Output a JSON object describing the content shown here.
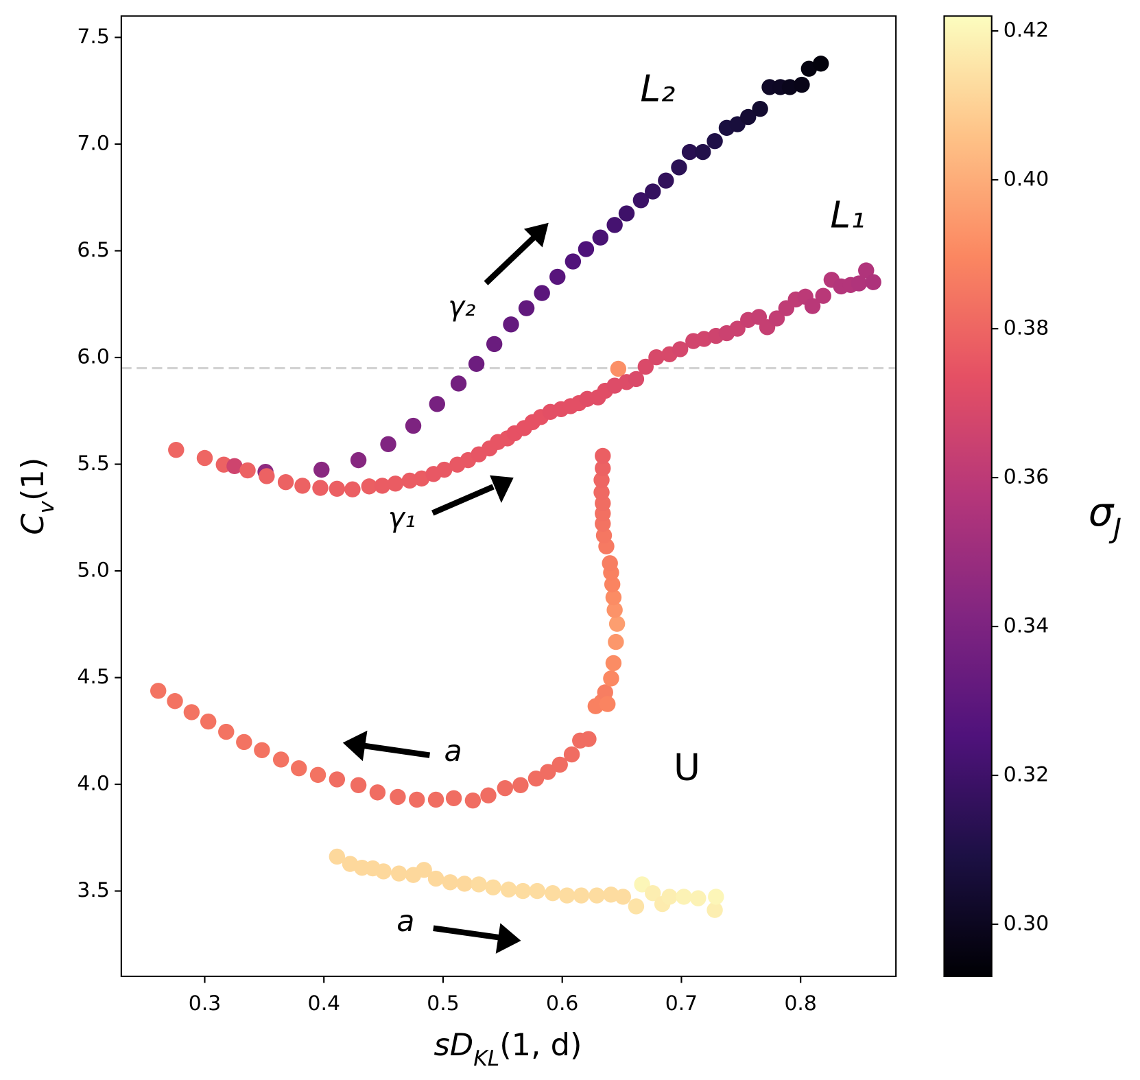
{
  "chart_data": {
    "type": "scatter",
    "xlabel": [
      {
        "text": "sD"
      },
      {
        "text": "KL",
        "sub": true
      },
      {
        "text": "(1, d)"
      }
    ],
    "ylabel": [
      {
        "text": "C"
      },
      {
        "text": "v",
        "sub": true
      },
      {
        "text": "(1)"
      }
    ],
    "xlim": [
      0.23,
      0.88
    ],
    "ylim": [
      3.1,
      7.6
    ],
    "xticks": [
      0.3,
      0.4,
      0.5,
      0.6,
      0.7,
      0.8
    ],
    "yticks": [
      {
        "value": 3.5,
        "label": "3.5"
      },
      {
        "value": 4.0,
        "label": "4.0"
      },
      {
        "value": 4.5,
        "label": "4.5"
      },
      {
        "value": 5.0,
        "label": "5.0"
      },
      {
        "value": 5.5,
        "label": "5.5"
      },
      {
        "value": 6.0,
        "label": "6.0"
      },
      {
        "value": 6.5,
        "label": "6.5"
      },
      {
        "value": 7.0,
        "label": "7.0"
      },
      {
        "value": 7.5,
        "label": "7.5"
      }
    ],
    "colormap": "magma",
    "colorbar": {
      "label": [
        {
          "text": "σ"
        },
        {
          "text": "J",
          "sub": true
        }
      ],
      "lim": [
        0.293,
        0.422
      ],
      "ticks": [
        {
          "value": 0.3,
          "label": "0.30"
        },
        {
          "value": 0.32,
          "label": "0.32"
        },
        {
          "value": 0.34,
          "label": "0.34"
        },
        {
          "value": 0.36,
          "label": "0.36"
        },
        {
          "value": 0.38,
          "label": "0.38"
        },
        {
          "value": 0.4,
          "label": "0.40"
        },
        {
          "value": 0.42,
          "label": "0.42"
        }
      ]
    },
    "hline": {
      "value": 5.95,
      "color": "#d3d3d3"
    },
    "annotations": [
      {
        "text": "L₂"
      },
      {
        "text": "L₁"
      },
      {
        "text": "U"
      },
      {
        "text": "γ₂"
      },
      {
        "text": "γ₁"
      },
      {
        "text": "a"
      },
      {
        "text": "a"
      }
    ],
    "series": [
      {
        "x": [
          0.351,
          0.398,
          0.429,
          0.454,
          0.475,
          0.495,
          0.513,
          0.528,
          0.543,
          0.557,
          0.57,
          0.583,
          0.596,
          0.609,
          0.62,
          0.632,
          0.644,
          0.654,
          0.666,
          0.676,
          0.687,
          0.698,
          0.707,
          0.718,
          0.728,
          0.738,
          0.747,
          0.756,
          0.766,
          0.774,
          0.783,
          0.791,
          0.801,
          0.807,
          0.817
        ],
        "values": [
          5.464,
          5.474,
          5.519,
          5.594,
          5.68,
          5.782,
          5.878,
          5.97,
          6.063,
          6.155,
          6.231,
          6.302,
          6.378,
          6.45,
          6.508,
          6.562,
          6.621,
          6.675,
          6.737,
          6.778,
          6.829,
          6.891,
          6.963,
          6.963,
          7.014,
          7.076,
          7.093,
          7.127,
          7.165,
          7.267,
          7.267,
          7.267,
          7.278,
          7.353,
          7.377
        ],
        "c": [
          0.345,
          0.344,
          0.343,
          0.341,
          0.34,
          0.338,
          0.337,
          0.335,
          0.334,
          0.332,
          0.331,
          0.329,
          0.328,
          0.326,
          0.325,
          0.323,
          0.322,
          0.32,
          0.319,
          0.317,
          0.316,
          0.314,
          0.313,
          0.311,
          0.31,
          0.308,
          0.307,
          0.305,
          0.304,
          0.302,
          0.301,
          0.299,
          0.298,
          0.296,
          0.295
        ]
      },
      {
        "x": [
          0.276,
          0.3,
          0.316,
          0.325,
          0.336,
          0.352,
          0.368,
          0.382,
          0.397,
          0.411,
          0.424,
          0.438,
          0.449,
          0.46,
          0.472,
          0.482,
          0.492,
          0.501,
          0.512,
          0.521,
          0.53,
          0.539,
          0.546,
          0.554,
          0.56,
          0.568,
          0.575,
          0.582,
          0.59,
          0.599,
          0.607,
          0.614,
          0.621,
          0.63,
          0.636,
          0.647,
          0.644,
          0.654,
          0.662,
          0.67,
          0.679,
          0.69,
          0.699,
          0.71,
          0.719,
          0.729,
          0.738,
          0.747,
          0.756,
          0.765,
          0.772,
          0.78,
          0.788,
          0.796,
          0.804,
          0.81,
          0.819,
          0.826,
          0.834,
          0.842,
          0.849,
          0.855,
          0.861
        ],
        "values": [
          5.567,
          5.529,
          5.498,
          5.491,
          5.471,
          5.444,
          5.416,
          5.399,
          5.389,
          5.385,
          5.382,
          5.396,
          5.399,
          5.409,
          5.423,
          5.433,
          5.454,
          5.474,
          5.498,
          5.519,
          5.546,
          5.574,
          5.604,
          5.621,
          5.645,
          5.669,
          5.697,
          5.721,
          5.745,
          5.758,
          5.772,
          5.786,
          5.806,
          5.813,
          5.844,
          5.947,
          5.868,
          5.885,
          5.899,
          5.957,
          6.001,
          6.015,
          6.039,
          6.077,
          6.087,
          6.101,
          6.114,
          6.135,
          6.176,
          6.19,
          6.142,
          6.183,
          6.231,
          6.272,
          6.285,
          6.241,
          6.289,
          6.364,
          6.333,
          6.34,
          6.347,
          6.408,
          6.353
        ],
        "c": [
          0.38,
          0.38,
          0.379,
          0.366,
          0.379,
          0.379,
          0.379,
          0.379,
          0.378,
          0.378,
          0.378,
          0.378,
          0.377,
          0.377,
          0.377,
          0.377,
          0.376,
          0.376,
          0.376,
          0.376,
          0.375,
          0.375,
          0.375,
          0.375,
          0.374,
          0.374,
          0.374,
          0.374,
          0.373,
          0.373,
          0.373,
          0.373,
          0.372,
          0.372,
          0.372,
          0.392,
          0.371,
          0.371,
          0.37,
          0.37,
          0.369,
          0.369,
          0.368,
          0.367,
          0.367,
          0.366,
          0.365,
          0.365,
          0.364,
          0.363,
          0.363,
          0.362,
          0.361,
          0.361,
          0.36,
          0.359,
          0.359,
          0.358,
          0.357,
          0.357,
          0.356,
          0.356,
          0.355
        ]
      },
      {
        "x": [
          0.261,
          0.275,
          0.289,
          0.303,
          0.318,
          0.333,
          0.348,
          0.364,
          0.379,
          0.395,
          0.411,
          0.429,
          0.445,
          0.462,
          0.478,
          0.494,
          0.509,
          0.525,
          0.538,
          0.552,
          0.565,
          0.578,
          0.588,
          0.598,
          0.608,
          0.615,
          0.622,
          0.628,
          0.633,
          0.636,
          0.638,
          0.641,
          0.643,
          0.645,
          0.646,
          0.644,
          0.643,
          0.642,
          0.641,
          0.64,
          0.637,
          0.635,
          0.634,
          0.634,
          0.634,
          0.633,
          0.633,
          0.634,
          0.634
        ],
        "values": [
          4.438,
          4.39,
          4.338,
          4.294,
          4.246,
          4.198,
          4.16,
          4.116,
          4.075,
          4.044,
          4.023,
          3.996,
          3.962,
          3.941,
          3.928,
          3.928,
          3.935,
          3.924,
          3.948,
          3.982,
          3.996,
          4.027,
          4.058,
          4.092,
          4.14,
          4.205,
          4.212,
          4.366,
          4.386,
          4.431,
          4.376,
          4.496,
          4.568,
          4.667,
          4.752,
          4.817,
          4.876,
          4.937,
          4.992,
          5.036,
          5.115,
          5.166,
          5.221,
          5.269,
          5.317,
          5.368,
          5.426,
          5.481,
          5.539
        ],
        "c": [
          0.384,
          0.384,
          0.384,
          0.384,
          0.384,
          0.384,
          0.384,
          0.384,
          0.384,
          0.384,
          0.382,
          0.382,
          0.382,
          0.382,
          0.382,
          0.382,
          0.382,
          0.382,
          0.382,
          0.382,
          0.382,
          0.382,
          0.382,
          0.382,
          0.382,
          0.382,
          0.382,
          0.388,
          0.388,
          0.387,
          0.389,
          0.39,
          0.391,
          0.394,
          0.396,
          0.393,
          0.391,
          0.389,
          0.388,
          0.387,
          0.386,
          0.385,
          0.384,
          0.383,
          0.382,
          0.381,
          0.38,
          0.379,
          0.378
        ]
      },
      {
        "x": [
          0.411,
          0.422,
          0.432,
          0.441,
          0.45,
          0.463,
          0.475,
          0.484,
          0.494,
          0.506,
          0.518,
          0.53,
          0.542,
          0.555,
          0.567,
          0.579,
          0.592,
          0.604,
          0.616,
          0.629,
          0.641,
          0.651,
          0.662,
          0.667,
          0.676,
          0.684,
          0.69,
          0.702,
          0.714,
          0.728,
          0.729
        ],
        "values": [
          3.661,
          3.627,
          3.609,
          3.606,
          3.592,
          3.582,
          3.575,
          3.599,
          3.558,
          3.541,
          3.534,
          3.531,
          3.517,
          3.507,
          3.5,
          3.5,
          3.49,
          3.479,
          3.479,
          3.479,
          3.483,
          3.473,
          3.428,
          3.531,
          3.49,
          3.439,
          3.473,
          3.473,
          3.466,
          3.411,
          3.473
        ],
        "c": [
          0.412,
          0.412,
          0.412,
          0.412,
          0.412,
          0.412,
          0.412,
          0.412,
          0.412,
          0.412,
          0.412,
          0.413,
          0.413,
          0.413,
          0.413,
          0.413,
          0.413,
          0.413,
          0.413,
          0.413,
          0.413,
          0.413,
          0.415,
          0.42,
          0.418,
          0.417,
          0.418,
          0.419,
          0.419,
          0.418,
          0.42
        ]
      }
    ]
  }
}
